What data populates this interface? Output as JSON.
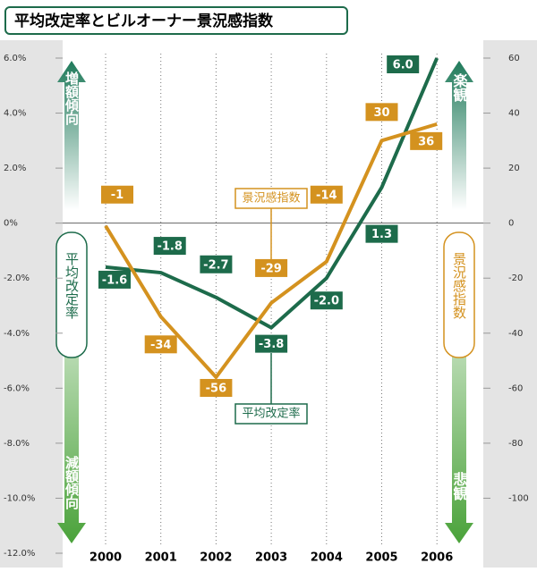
{
  "chart_data": {
    "type": "line",
    "title": "平均改定率とビルオーナー景況感指数",
    "categories": [
      "2000",
      "2001",
      "2002",
      "2003",
      "2004",
      "2005",
      "2006"
    ],
    "series": [
      {
        "name": "平均改定率",
        "color": "#1d6b4b",
        "values": [
          -1.6,
          -1.8,
          -2.7,
          -3.8,
          -2.0,
          1.3,
          6.0
        ],
        "value_labels": [
          "-1.6",
          "-1.8",
          "-2.7",
          "-3.8",
          "-2.0",
          "1.3",
          "6.0"
        ]
      },
      {
        "name": "景況感指数",
        "color": "#d4921f",
        "axis": "y2",
        "values": [
          -1,
          -34,
          -56,
          -29,
          -14,
          30,
          36
        ]
      }
    ],
    "ylim": [
      -12,
      6
    ],
    "yticks": [
      {
        "value": 6,
        "label": "6.0%"
      },
      {
        "value": 4,
        "label": "4.0%"
      },
      {
        "value": 2,
        "label": "2.0%"
      },
      {
        "value": 0,
        "label": "0%"
      },
      {
        "value": -2,
        "label": "-2.0%"
      },
      {
        "value": -4,
        "label": "-4.0%"
      },
      {
        "value": -6,
        "label": "-6.0%"
      },
      {
        "value": -8,
        "label": "-8.0%"
      },
      {
        "value": -10,
        "label": "-10.0%"
      },
      {
        "value": -12,
        "label": "-12.0%"
      }
    ],
    "y2lim": [
      -120,
      60
    ],
    "y2ticks": [
      60,
      40,
      20,
      0,
      -20,
      -40,
      -60,
      -80,
      -100
    ],
    "annotations": [
      "増額傾向",
      "減額傾向",
      "楽観",
      "悲観"
    ]
  }
}
